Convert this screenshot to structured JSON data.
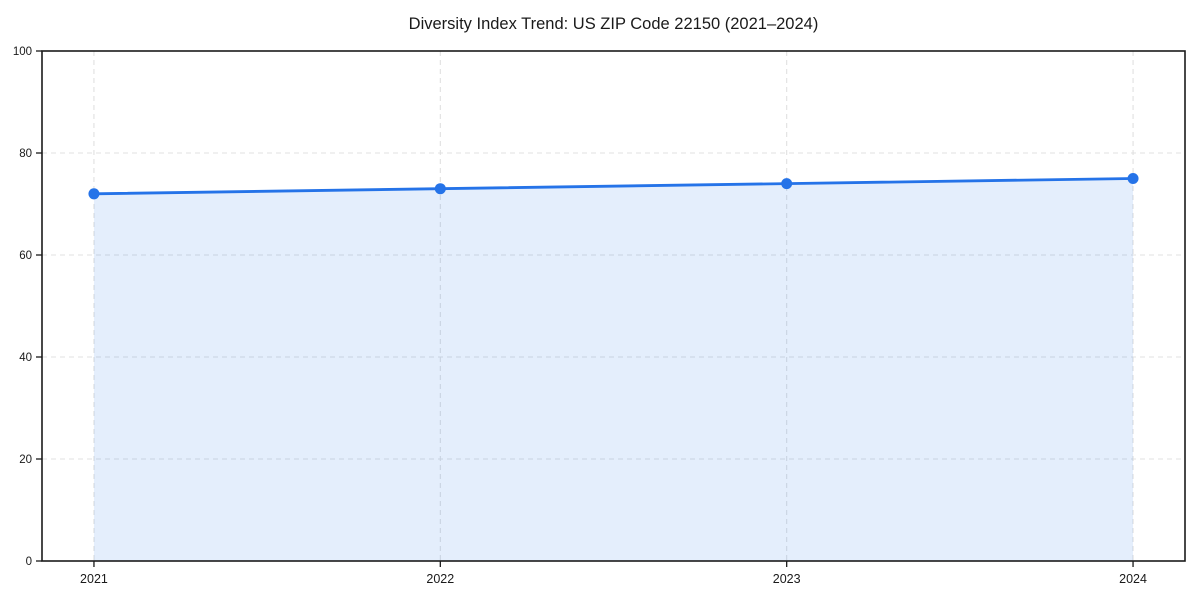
{
  "chart_data": {
    "type": "line",
    "title": "Diversity Index Trend: US ZIP Code 22150 (2021–2024)",
    "x": [
      2021,
      2022,
      2023,
      2024
    ],
    "x_labels": [
      "2021",
      "2022",
      "2023",
      "2024"
    ],
    "series": [
      {
        "name": "Diversity Index",
        "values": [
          72,
          73,
          74,
          75
        ]
      }
    ],
    "xlabel": "",
    "ylabel": "",
    "ylim": [
      0,
      100
    ],
    "xlim": [
      2020.85,
      2024.15
    ],
    "y_ticks": [
      0,
      20,
      40,
      60,
      80,
      100
    ],
    "grid": true,
    "grid_style": "dashed",
    "area_fill": true,
    "legend_position": "none",
    "marker": "circle",
    "colors": {
      "line": "#2573e8",
      "marker": "#2573e8",
      "area_fill": "rgba(37,115,232,0.12)",
      "grid": "#e0e0e0",
      "spine": "#1a1a1a",
      "tick_text": "#1a1a1a",
      "title_text": "#111111",
      "background": "#ffffff"
    }
  }
}
